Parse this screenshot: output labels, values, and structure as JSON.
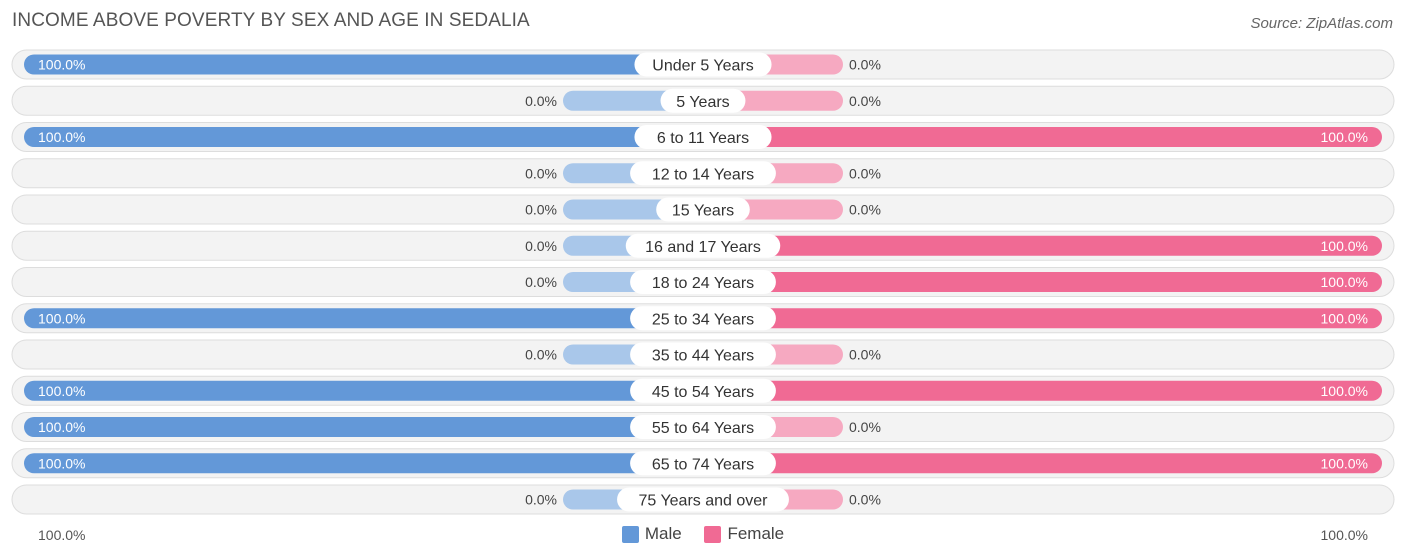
{
  "header": {
    "title": "INCOME ABOVE POVERTY BY SEX AND AGE IN SEDALIA",
    "source": "Source: ZipAtlas.com"
  },
  "colors": {
    "male_full": "#6398d8",
    "male_light": "#a9c7ea",
    "female_full": "#f06a94",
    "female_light": "#f6a9c1",
    "row_bg": "#f3f3f3",
    "row_border": "#dddddd"
  },
  "chart_data": {
    "type": "bar",
    "orientation": "horizontal-diverging",
    "title": "INCOME ABOVE POVERTY BY SEX AND AGE IN SEDALIA",
    "categories": [
      "Under 5 Years",
      "5 Years",
      "6 to 11 Years",
      "12 to 14 Years",
      "15 Years",
      "16 and 17 Years",
      "18 to 24 Years",
      "25 to 34 Years",
      "35 to 44 Years",
      "45 to 54 Years",
      "55 to 64 Years",
      "65 to 74 Years",
      "75 Years and over"
    ],
    "series": [
      {
        "name": "Male",
        "values": [
          100,
          0,
          100,
          0,
          0,
          0,
          0,
          100,
          0,
          100,
          100,
          100,
          0
        ],
        "labels": [
          "100.0%",
          "0.0%",
          "100.0%",
          "0.0%",
          "0.0%",
          "0.0%",
          "0.0%",
          "100.0%",
          "0.0%",
          "100.0%",
          "100.0%",
          "100.0%",
          "0.0%"
        ]
      },
      {
        "name": "Female",
        "values": [
          0,
          0,
          100,
          0,
          0,
          100,
          100,
          100,
          0,
          100,
          0,
          100,
          0
        ],
        "labels": [
          "0.0%",
          "0.0%",
          "100.0%",
          "0.0%",
          "0.0%",
          "100.0%",
          "100.0%",
          "100.0%",
          "0.0%",
          "100.0%",
          "0.0%",
          "100.0%",
          "0.0%"
        ]
      }
    ],
    "xlim": [
      0,
      100
    ],
    "axis_left_label": "100.0%",
    "axis_right_label": "100.0%",
    "legend_position": "bottom"
  },
  "legend": {
    "male": "Male",
    "female": "Female"
  }
}
